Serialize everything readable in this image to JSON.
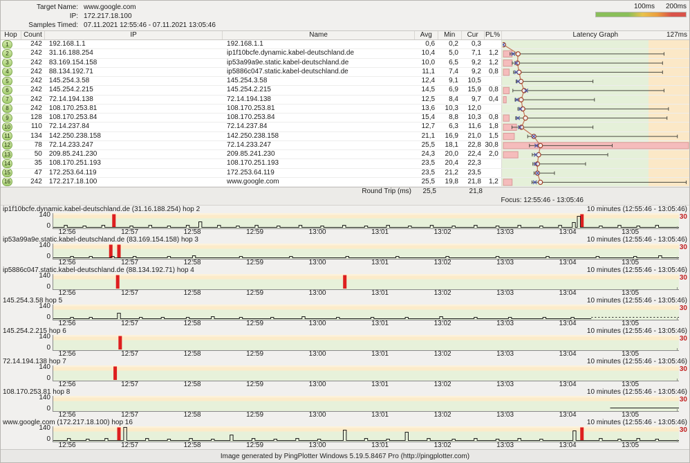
{
  "header": {
    "target_name_label": "Target Name:",
    "target_name": "www.google.com",
    "ip_label": "IP:",
    "ip": "172.217.18.100",
    "samples_label": "Samples Timed:",
    "samples": "07.11.2021 12:55:46 - 07.11.2021 13:05:46",
    "legend": {
      "label_100": "100ms",
      "label_200": "200ms",
      "colors": [
        "#8abf5a",
        "#e9c24d",
        "#d9534a"
      ]
    }
  },
  "table": {
    "columns": [
      "Hop",
      "Count",
      "IP",
      "Name",
      "Avg",
      "Min",
      "Cur",
      "PL%",
      "Latency Graph",
      "127ms"
    ],
    "scale_max_ms": 127,
    "green_limit_ms": 100,
    "rows": [
      {
        "hop": "1",
        "count": "242",
        "ip": "192.168.1.1",
        "name": "192.168.1.1",
        "avg": "0,6",
        "min": "0,2",
        "cur": "0,3",
        "pl": "",
        "lat": {
          "min": 0.2,
          "avg": 0.6,
          "cur": 0.3,
          "max": 1.5,
          "pl": 0
        }
      },
      {
        "hop": "2",
        "count": "242",
        "ip": "31.16.188.254",
        "name": "ip1f10bcfe.dynamic.kabel-deutschland.de",
        "avg": "10,4",
        "min": "5,0",
        "cur": "7,1",
        "pl": "1,2",
        "lat": {
          "min": 5.0,
          "avg": 10.4,
          "cur": 7.1,
          "max": 109,
          "pl": 1.2
        }
      },
      {
        "hop": "3",
        "count": "242",
        "ip": "83.169.154.158",
        "name": "ip53a99a9e.static.kabel-deutschland.de",
        "avg": "10,0",
        "min": "6,5",
        "cur": "9,2",
        "pl": "1,2",
        "lat": {
          "min": 6.5,
          "avg": 10.0,
          "cur": 9.2,
          "max": 108,
          "pl": 1.2
        }
      },
      {
        "hop": "4",
        "count": "242",
        "ip": "88.134.192.71",
        "name": "ip5886c047.static.kabel-deutschland.de",
        "avg": "11,1",
        "min": "7,4",
        "cur": "9,2",
        "pl": "0,8",
        "lat": {
          "min": 7.4,
          "avg": 11.1,
          "cur": 9.2,
          "max": 108,
          "pl": 0.8
        }
      },
      {
        "hop": "5",
        "count": "242",
        "ip": "145.254.3.58",
        "name": "145.254.3.58",
        "avg": "12,4",
        "min": "9,1",
        "cur": "10,5",
        "pl": "",
        "lat": {
          "min": 9.1,
          "avg": 12.4,
          "cur": 10.5,
          "max": 61,
          "pl": 0
        }
      },
      {
        "hop": "6",
        "count": "242",
        "ip": "145.254.2.215",
        "name": "145.254.2.215",
        "avg": "14,5",
        "min": "6,9",
        "cur": "15,9",
        "pl": "0,8",
        "lat": {
          "min": 6.9,
          "avg": 14.5,
          "cur": 15.9,
          "max": 109,
          "pl": 0.8
        }
      },
      {
        "hop": "7",
        "count": "242",
        "ip": "72.14.194.138",
        "name": "72.14.194.138",
        "avg": "12,5",
        "min": "8,4",
        "cur": "9,7",
        "pl": "0,4",
        "lat": {
          "min": 8.4,
          "avg": 12.5,
          "cur": 9.7,
          "max": 62,
          "pl": 0.4
        }
      },
      {
        "hop": "8",
        "count": "242",
        "ip": "108.170.253.81",
        "name": "108.170.253.81",
        "avg": "13,6",
        "min": "10,3",
        "cur": "12,0",
        "pl": "",
        "lat": {
          "min": 10.3,
          "avg": 13.6,
          "cur": 12.0,
          "max": 112,
          "pl": 0
        }
      },
      {
        "hop": "9",
        "count": "128",
        "ip": "108.170.253.84",
        "name": "108.170.253.84",
        "avg": "15,4",
        "min": "8,8",
        "cur": "10,3",
        "pl": "0,8",
        "lat": {
          "min": 8.8,
          "avg": 15.4,
          "cur": 10.3,
          "max": 111,
          "pl": 0.8
        }
      },
      {
        "hop": "10",
        "count": "110",
        "ip": "72.14.237.84",
        "name": "72.14.237.84",
        "avg": "12,7",
        "min": "6,3",
        "cur": "11,6",
        "pl": "1,8",
        "lat": {
          "min": 6.3,
          "avg": 12.7,
          "cur": 11.6,
          "max": 61,
          "pl": 1.8
        }
      },
      {
        "hop": "11",
        "count": "134",
        "ip": "142.250.238.158",
        "name": "142.250.238.158",
        "avg": "21,1",
        "min": "16,9",
        "cur": "21,0",
        "pl": "1,5",
        "lat": {
          "min": 16.9,
          "avg": 21.1,
          "cur": 21.0,
          "max": 118,
          "pl": 1.5
        }
      },
      {
        "hop": "12",
        "count": "78",
        "ip": "72.14.233.247",
        "name": "72.14.233.247",
        "avg": "25,5",
        "min": "18,1",
        "cur": "22,8",
        "pl": "30,8",
        "lat": {
          "min": 18.1,
          "avg": 25.5,
          "cur": 22.8,
          "max": 74,
          "pl": 30.8
        }
      },
      {
        "hop": "13",
        "count": "50",
        "ip": "209.85.241.230",
        "name": "209.85.241.230",
        "avg": "24,3",
        "min": "20,0",
        "cur": "22,4",
        "pl": "2,0",
        "lat": {
          "min": 20.0,
          "avg": 24.3,
          "cur": 22.4,
          "max": 71,
          "pl": 2.0
        }
      },
      {
        "hop": "14",
        "count": "35",
        "ip": "108.170.251.193",
        "name": "108.170.251.193",
        "avg": "23,5",
        "min": "20,4",
        "cur": "22,3",
        "pl": "",
        "lat": {
          "min": 20.4,
          "avg": 23.5,
          "cur": 22.3,
          "max": 56,
          "pl": 0
        }
      },
      {
        "hop": "15",
        "count": "47",
        "ip": "172.253.64.119",
        "name": "172.253.64.119",
        "avg": "23,5",
        "min": "21,2",
        "cur": "23,5",
        "pl": "",
        "lat": {
          "min": 21.2,
          "avg": 23.5,
          "cur": 23.5,
          "max": 35,
          "pl": 0
        }
      },
      {
        "hop": "16",
        "count": "242",
        "ip": "172.217.18.100",
        "name": "www.google.com",
        "avg": "25,5",
        "min": "19,8",
        "cur": "21,8",
        "pl": "1,2",
        "lat": {
          "min": 19.8,
          "avg": 25.5,
          "cur": 21.8,
          "max": 124,
          "pl": 1.2
        }
      }
    ],
    "round_trip": {
      "label": "Round Trip (ms)",
      "avg": "25,5",
      "cur": "21,8"
    },
    "focus": "Focus: 12:55:46 - 13:05:46"
  },
  "graphs": {
    "range_label": "10 minutes (12:55:46 - 13:05:46)",
    "y_top": "140",
    "y_zero": "0",
    "y_right": "30",
    "ticks": [
      "12:56",
      "12:57",
      "12:58",
      "12:59",
      "13:00",
      "13:01",
      "13:02",
      "13:03",
      "13:04",
      "13:05"
    ],
    "items": [
      {
        "title": "ip1f10bcfe.dynamic.kabel-deutschland.de (31.16.188.254) hop 2",
        "loss": [
          0.097,
          0.845
        ],
        "segments": [
          {
            "from": 0,
            "to": 1,
            "dash": false,
            "h": 0
          }
        ],
        "bumps": [
          [
            0.02,
            3
          ],
          [
            0.05,
            2
          ],
          [
            0.08,
            3
          ],
          [
            0.125,
            2
          ],
          [
            0.155,
            3
          ],
          [
            0.185,
            2
          ],
          [
            0.215,
            3
          ],
          [
            0.235,
            8
          ],
          [
            0.265,
            3
          ],
          [
            0.295,
            2
          ],
          [
            0.325,
            3
          ],
          [
            0.36,
            2
          ],
          [
            0.395,
            3
          ],
          [
            0.43,
            2
          ],
          [
            0.465,
            3
          ],
          [
            0.5,
            2
          ],
          [
            0.535,
            3
          ],
          [
            0.57,
            2
          ],
          [
            0.605,
            3
          ],
          [
            0.64,
            2
          ],
          [
            0.675,
            3
          ],
          [
            0.71,
            2
          ],
          [
            0.745,
            3
          ],
          [
            0.78,
            2
          ],
          [
            0.81,
            3
          ],
          [
            0.832,
            7
          ],
          [
            0.84,
            16
          ],
          [
            0.875,
            2
          ],
          [
            0.905,
            3
          ],
          [
            0.935,
            2
          ],
          [
            0.965,
            3
          ]
        ]
      },
      {
        "title": "ip53a99a9e.static.kabel-deutschland.de (83.169.154.158) hop 3",
        "loss": [
          0.092,
          0.105
        ],
        "segments": [
          {
            "from": 0,
            "to": 1,
            "dash": false,
            "h": 0
          }
        ],
        "bumps": [
          [
            0.03,
            2
          ],
          [
            0.06,
            2
          ],
          [
            0.095,
            2
          ],
          [
            0.13,
            2
          ],
          [
            0.185,
            2
          ],
          [
            0.225,
            3
          ],
          [
            0.3,
            2
          ],
          [
            0.38,
            2
          ],
          [
            0.47,
            2
          ],
          [
            0.55,
            2
          ],
          [
            0.63,
            2
          ],
          [
            0.71,
            2
          ],
          [
            0.79,
            2
          ],
          [
            0.87,
            2
          ],
          [
            0.93,
            2
          ],
          [
            0.97,
            3
          ]
        ]
      },
      {
        "title": "ip5886c047.static.kabel-deutschland.de (88.134.192.71) hop 4",
        "loss": [
          0.103,
          0.466
        ],
        "segments": [],
        "bumps": []
      },
      {
        "title": "145.254.3.58 hop 5",
        "loss": [],
        "segments": [
          {
            "from": 0,
            "to": 0.86,
            "dash": false,
            "h": 0
          },
          {
            "from": 0.86,
            "to": 1,
            "dash": true,
            "h": 2
          }
        ],
        "bumps": [
          [
            0.03,
            2
          ],
          [
            0.06,
            2
          ],
          [
            0.105,
            8
          ],
          [
            0.14,
            2
          ],
          [
            0.175,
            2
          ],
          [
            0.215,
            2
          ],
          [
            0.255,
            3
          ],
          [
            0.3,
            2
          ],
          [
            0.35,
            2
          ],
          [
            0.4,
            3
          ],
          [
            0.455,
            2
          ],
          [
            0.51,
            2
          ],
          [
            0.565,
            2
          ],
          [
            0.62,
            3
          ],
          [
            0.675,
            2
          ],
          [
            0.73,
            2
          ],
          [
            0.785,
            2
          ],
          [
            0.83,
            2
          ]
        ]
      },
      {
        "title": "145.254.2.215 hop 6",
        "loss": [
          0.107
        ],
        "segments": [],
        "bumps": []
      },
      {
        "title": "72.14.194.138 hop 7",
        "loss": [
          0.099
        ],
        "segments": [],
        "bumps": []
      },
      {
        "title": "108.170.253.81 hop 8",
        "loss": [],
        "segments": [
          {
            "from": 0.89,
            "to": 1,
            "dash": false,
            "h": 3
          }
        ],
        "bumps": []
      },
      {
        "title": "www.google.com (172.217.18.100) hop 16",
        "loss": [
          0.105,
          0.845
        ],
        "segments": [
          {
            "from": 0,
            "to": 1,
            "dash": false,
            "h": 0
          }
        ],
        "bumps": [
          [
            0.025,
            3
          ],
          [
            0.055,
            2
          ],
          [
            0.085,
            3
          ],
          [
            0.115,
            19
          ],
          [
            0.15,
            3
          ],
          [
            0.185,
            2
          ],
          [
            0.22,
            3
          ],
          [
            0.255,
            2
          ],
          [
            0.285,
            8
          ],
          [
            0.32,
            3
          ],
          [
            0.355,
            2
          ],
          [
            0.39,
            3
          ],
          [
            0.425,
            2
          ],
          [
            0.466,
            15
          ],
          [
            0.5,
            3
          ],
          [
            0.535,
            2
          ],
          [
            0.565,
            12
          ],
          [
            0.6,
            3
          ],
          [
            0.64,
            2
          ],
          [
            0.675,
            3
          ],
          [
            0.71,
            2
          ],
          [
            0.745,
            3
          ],
          [
            0.78,
            2
          ],
          [
            0.833,
            14
          ],
          [
            0.875,
            3
          ],
          [
            0.905,
            2
          ],
          [
            0.935,
            3
          ],
          [
            0.965,
            2
          ]
        ]
      }
    ]
  },
  "footer": "Image generated by PingPlotter Windows 5.19.5.8467 Pro (http://pingplotter.com)"
}
